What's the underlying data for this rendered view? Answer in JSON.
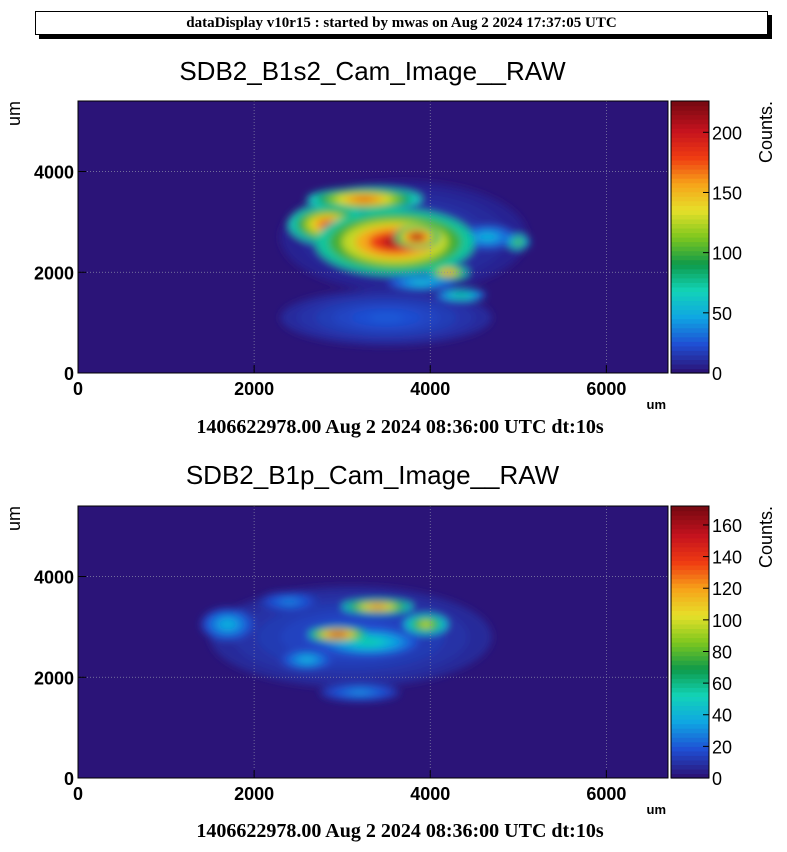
{
  "header": {
    "text": "dataDisplay v10r15 : started by mwas on Aug  2 2024 17:37:05 UTC"
  },
  "panels": [
    {
      "title": "SDB2_B1s2_Cam_Image__RAW",
      "timestamp": "1406622978.00 Aug 2 2024 08:36:00 UTC dt:10s"
    },
    {
      "title": "SDB2_B1p_Cam_Image__RAW",
      "timestamp": "1406622978.00 Aug 2 2024 08:36:00 UTC dt:10s"
    }
  ],
  "colors": {
    "background": "#2b1478",
    "palette": [
      "#2b1478",
      "#1f4fd4",
      "#0fa5e3",
      "#12d4b8",
      "#0e9a4a",
      "#7ec71e",
      "#e6e02a",
      "#f7a319",
      "#ef3a12",
      "#c4121e",
      "#7a0a12"
    ]
  },
  "chart_data": [
    {
      "type": "heatmap",
      "title": "SDB2_B1s2_Cam_Image__RAW",
      "xlabel": "um",
      "ylabel": "um",
      "zlabel": "Counts.",
      "xlim": [
        0,
        6700
      ],
      "ylim": [
        0,
        5400
      ],
      "zlim": [
        0,
        226
      ],
      "x_ticks": [
        0,
        2000,
        4000,
        6000
      ],
      "y_ticks": [
        0,
        2000,
        4000
      ],
      "z_ticks": [
        0,
        50,
        100,
        150,
        200
      ],
      "grid": true,
      "features": [
        {
          "x": 3600,
          "y": 2600,
          "sx": 900,
          "sy": 650,
          "value": 210
        },
        {
          "x": 2850,
          "y": 2950,
          "sx": 450,
          "sy": 380,
          "value": 190
        },
        {
          "x": 3250,
          "y": 3450,
          "sx": 650,
          "sy": 230,
          "value": 185
        },
        {
          "x": 3850,
          "y": 2700,
          "sx": 260,
          "sy": 230,
          "value": 226
        },
        {
          "x": 4200,
          "y": 2000,
          "sx": 230,
          "sy": 150,
          "value": 175
        },
        {
          "x": 4650,
          "y": 2700,
          "sx": 320,
          "sy": 230,
          "value": 55
        },
        {
          "x": 5000,
          "y": 2600,
          "sx": 130,
          "sy": 140,
          "value": 115
        },
        {
          "x": 4350,
          "y": 1550,
          "sx": 280,
          "sy": 120,
          "value": 85
        },
        {
          "x": 3900,
          "y": 1800,
          "sx": 380,
          "sy": 150,
          "value": 60
        },
        {
          "x": 3500,
          "y": 1100,
          "sx": 1200,
          "sy": 550,
          "value": 25
        },
        {
          "x": 3700,
          "y": 2700,
          "sx": 1400,
          "sy": 1100,
          "value": 18
        }
      ]
    },
    {
      "type": "heatmap",
      "title": "SDB2_B1p_Cam_Image__RAW",
      "xlabel": "um",
      "ylabel": "um",
      "zlabel": "Counts.",
      "xlim": [
        0,
        6700
      ],
      "ylim": [
        0,
        5400
      ],
      "zlim": [
        0,
        172
      ],
      "x_ticks": [
        0,
        2000,
        4000,
        6000
      ],
      "y_ticks": [
        0,
        2000,
        4000
      ],
      "z_ticks": [
        0,
        20,
        40,
        60,
        80,
        100,
        120,
        140,
        160
      ],
      "grid": true,
      "features": [
        {
          "x": 2950,
          "y": 2850,
          "sx": 330,
          "sy": 150,
          "value": 160
        },
        {
          "x": 3400,
          "y": 3400,
          "sx": 400,
          "sy": 140,
          "value": 138
        },
        {
          "x": 3950,
          "y": 3050,
          "sx": 250,
          "sy": 200,
          "value": 105
        },
        {
          "x": 3300,
          "y": 2700,
          "sx": 550,
          "sy": 260,
          "value": 55
        },
        {
          "x": 1700,
          "y": 3050,
          "sx": 300,
          "sy": 320,
          "value": 40
        },
        {
          "x": 2600,
          "y": 2350,
          "sx": 300,
          "sy": 200,
          "value": 40
        },
        {
          "x": 2400,
          "y": 3500,
          "sx": 350,
          "sy": 200,
          "value": 28
        },
        {
          "x": 3200,
          "y": 1700,
          "sx": 450,
          "sy": 180,
          "value": 30
        },
        {
          "x": 3100,
          "y": 2800,
          "sx": 1600,
          "sy": 1000,
          "value": 18
        }
      ]
    }
  ]
}
